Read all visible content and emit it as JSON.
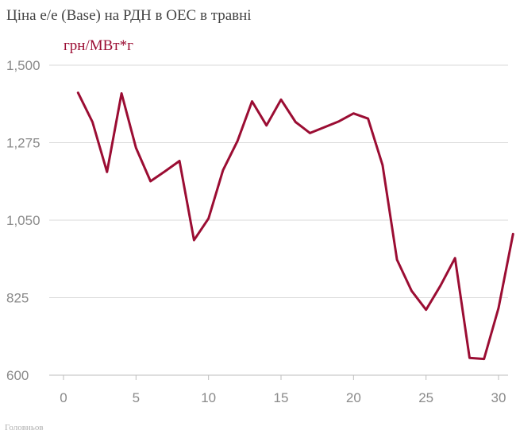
{
  "chart_data": {
    "type": "line",
    "title": "Ціна е/е (Base) на РДН в ОЕС в травні",
    "ylabel": "грн/МВт*г",
    "xlabel": "",
    "source": "Головньов",
    "ylim": [
      600,
      1500
    ],
    "xlim": [
      -1,
      31
    ],
    "yticks": [
      600,
      825,
      1050,
      1275,
      1500
    ],
    "ytick_labels": [
      "600",
      "825",
      "1,050",
      "1,275",
      "1,500"
    ],
    "xticks": [
      0,
      5,
      10,
      15,
      20,
      25,
      30
    ],
    "xtick_labels": [
      "0",
      "5",
      "10",
      "15",
      "20",
      "25",
      "30"
    ],
    "grid": true,
    "color": "#9b0d33",
    "series": [
      {
        "x": [
          1,
          2,
          3,
          4,
          5,
          6,
          7,
          8,
          9,
          10,
          11,
          12,
          13,
          14,
          15,
          16,
          17,
          18,
          19,
          20,
          21,
          22,
          23,
          24,
          25,
          26,
          27,
          28,
          29,
          30,
          31
        ],
        "y": [
          1420,
          1335,
          1190,
          1418,
          1260,
          1163,
          1192,
          1222,
          992,
          1055,
          1195,
          1280,
          1395,
          1325,
          1400,
          1335,
          1303,
          1320,
          1337,
          1360,
          1345,
          1210,
          935,
          845,
          790,
          860,
          940,
          650,
          647,
          795,
          1010
        ]
      }
    ]
  }
}
